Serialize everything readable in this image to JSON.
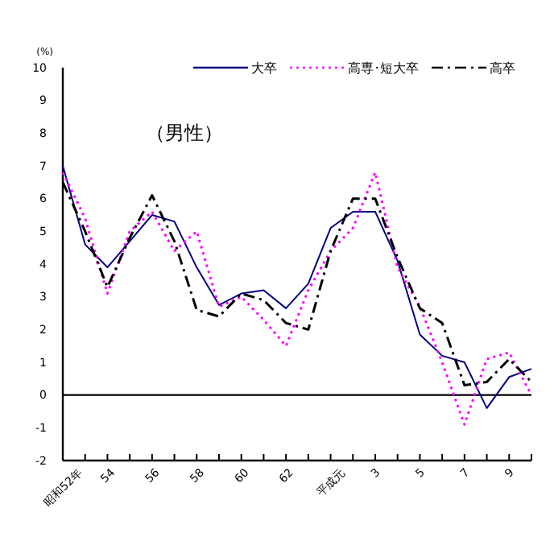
{
  "chart_data": {
    "type": "line",
    "ylabel": "(%)",
    "annotations": [
      "（男性）"
    ],
    "categories": [
      "昭和52年",
      null,
      "54",
      null,
      "56",
      null,
      "58",
      null,
      "60",
      null,
      "62",
      null,
      "平成元",
      null,
      "3",
      null,
      "5",
      null,
      "7",
      null,
      "9",
      null
    ],
    "series": [
      {
        "name": "大卒",
        "color": "#000080",
        "line_style": "solid",
        "values": [
          7.0,
          4.6,
          3.9,
          4.7,
          5.5,
          5.3,
          3.9,
          2.75,
          3.1,
          3.2,
          2.65,
          3.4,
          5.1,
          5.6,
          5.6,
          4.1,
          1.85,
          1.2,
          1.0,
          -0.4,
          0.55,
          0.8
        ]
      },
      {
        "name": "高専･短大卒",
        "color": "#ff00ff",
        "line_style": "dotted",
        "values": [
          6.8,
          5.4,
          3.1,
          5.0,
          5.6,
          4.4,
          5.0,
          2.7,
          3.0,
          2.3,
          1.5,
          3.2,
          4.4,
          5.1,
          6.8,
          3.9,
          2.7,
          1.0,
          -0.9,
          1.1,
          1.3,
          0.0
        ]
      },
      {
        "name": "高卒",
        "color": "#000000",
        "line_style": "dashdot",
        "values": [
          6.5,
          5.0,
          3.3,
          4.8,
          6.1,
          4.7,
          2.6,
          2.4,
          3.1,
          2.9,
          2.2,
          2.0,
          4.4,
          6.0,
          6.0,
          4.2,
          2.65,
          2.2,
          0.3,
          0.4,
          1.1,
          0.4
        ]
      }
    ],
    "ylim": [
      -2,
      10
    ],
    "yticks": [
      -2,
      -1,
      0,
      1,
      2,
      3,
      4,
      5,
      6,
      7,
      8,
      9,
      10
    ],
    "ref_lines": [
      {
        "axis": "y",
        "value": 0,
        "color": "#000000"
      }
    ],
    "grid": false,
    "legend": "top"
  }
}
